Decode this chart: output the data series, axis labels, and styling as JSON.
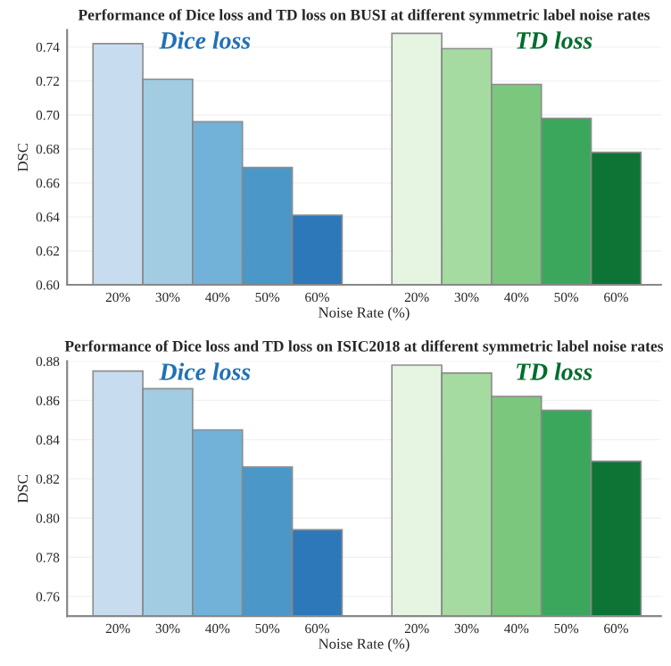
{
  "chart_data": [
    {
      "type": "bar",
      "title": "Performance of Dice loss and TD loss on BUSI at different symmetric label noise rates",
      "xlabel": "Noise Rate (%)",
      "ylabel": "DSC",
      "categories": [
        "20%",
        "30%",
        "40%",
        "50%",
        "60%",
        null,
        "20%",
        "30%",
        "40%",
        "50%",
        "60%"
      ],
      "series": [
        {
          "name": "Dice loss",
          "colors": [
            "#c6dbef",
            "#9ecae1",
            "#6baed6",
            "#4292c6",
            "#2171b5",
            null,
            null,
            null,
            null,
            null,
            null
          ],
          "values": [
            0.742,
            0.721,
            0.696,
            0.669,
            0.641,
            null,
            null,
            null,
            null,
            null,
            null
          ]
        },
        {
          "name": "TD loss",
          "colors": [
            null,
            null,
            null,
            null,
            null,
            null,
            "#e5f5e0",
            "#a1d99b",
            "#74c476",
            "#31a354",
            "#006d2c"
          ],
          "values": [
            null,
            null,
            null,
            null,
            null,
            null,
            0.748,
            0.739,
            0.718,
            0.698,
            0.678
          ]
        }
      ],
      "ylim": [
        0.6,
        0.75
      ],
      "yticks": [
        {
          "value": 0.6,
          "label": "0.60"
        },
        0.62,
        0.64,
        0.66,
        0.68,
        {
          "value": 0.7,
          "label": "0.70"
        },
        0.72,
        0.74
      ],
      "grid": "y",
      "legend": false
    },
    {
      "type": "bar",
      "title": "Performance of Dice loss and TD loss on ISIC2018 at different symmetric label noise rates",
      "xlabel": "Noise Rate (%)",
      "ylabel": "DSC",
      "categories": [
        "20%",
        "30%",
        "40%",
        "50%",
        "60%",
        null,
        "20%",
        "30%",
        "40%",
        "50%",
        "60%"
      ],
      "series": [
        {
          "name": "Dice loss",
          "colors": [
            "#c6dbef",
            "#9ecae1",
            "#6baed6",
            "#4292c6",
            "#2171b5",
            null,
            null,
            null,
            null,
            null,
            null
          ],
          "values": [
            0.875,
            0.866,
            0.845,
            0.826,
            0.794,
            null,
            null,
            null,
            null,
            null,
            null
          ]
        },
        {
          "name": "TD loss",
          "colors": [
            null,
            null,
            null,
            null,
            null,
            null,
            "#e5f5e0",
            "#a1d99b",
            "#74c476",
            "#31a354",
            "#006d2c"
          ],
          "values": [
            null,
            null,
            null,
            null,
            null,
            null,
            0.878,
            0.874,
            0.862,
            0.855,
            0.829
          ]
        }
      ],
      "ylim": [
        0.75,
        0.88
      ],
      "yticks": [
        0.76,
        0.78,
        {
          "value": 0.8,
          "label": "0.80"
        },
        0.82,
        0.84,
        0.86,
        0.88
      ],
      "grid": "y",
      "legend": false
    }
  ]
}
